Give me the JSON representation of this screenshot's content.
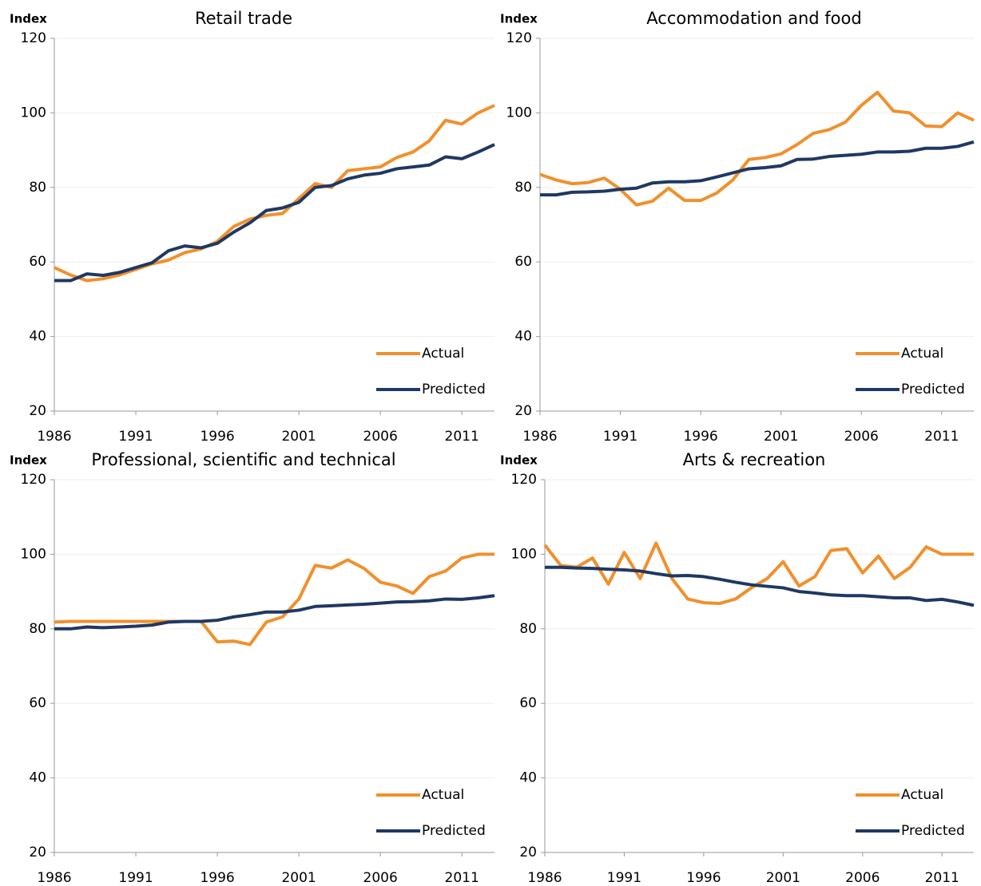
{
  "chart_data": [
    {
      "type": "line",
      "title": "Retail trade",
      "y_label": "Index",
      "x": [
        1986,
        1987,
        1988,
        1989,
        1990,
        1991,
        1992,
        1993,
        1994,
        1995,
        1996,
        1997,
        1998,
        1999,
        2000,
        2001,
        2002,
        2003,
        2004,
        2005,
        2006,
        2007,
        2008,
        2009,
        2010,
        2011,
        2012,
        2013
      ],
      "xlim": [
        1986,
        2013
      ],
      "xticks": [
        1986,
        1991,
        1996,
        2001,
        2006,
        2011
      ],
      "ylim": [
        20,
        120
      ],
      "yticks": [
        20,
        40,
        60,
        80,
        100,
        120
      ],
      "grid": true,
      "series": [
        {
          "name": "Actual",
          "color": "#f0902c",
          "values": [
            58.5,
            56.5,
            55,
            55.5,
            56.5,
            58,
            59.5,
            60.5,
            62.5,
            63.5,
            65.5,
            69.5,
            71.5,
            72.5,
            73,
            77,
            81,
            80,
            84.5,
            85,
            85.5,
            88,
            89.5,
            92.5,
            98,
            97,
            100,
            102
          ]
        },
        {
          "name": "Predicted",
          "color": "#1f3864",
          "values": [
            55,
            55,
            56.8,
            56.4,
            57.2,
            58.5,
            59.8,
            63,
            64.3,
            63.8,
            65,
            68,
            70.5,
            73.8,
            74.5,
            76,
            80,
            80.5,
            82.3,
            83.3,
            83.8,
            85,
            85.5,
            86,
            88.2,
            87.7,
            89.5,
            91.5
          ]
        }
      ]
    },
    {
      "type": "line",
      "title": "Accommodation and food",
      "y_label": "Index",
      "x": [
        1986,
        1987,
        1988,
        1989,
        1990,
        1991,
        1992,
        1993,
        1994,
        1995,
        1996,
        1997,
        1998,
        1999,
        2000,
        2001,
        2002,
        2003,
        2004,
        2005,
        2006,
        2007,
        2008,
        2009,
        2010,
        2011,
        2012,
        2013
      ],
      "xlim": [
        1986,
        2013
      ],
      "xticks": [
        1986,
        1991,
        1996,
        2001,
        2006,
        2011
      ],
      "ylim": [
        20,
        120
      ],
      "yticks": [
        20,
        40,
        60,
        80,
        100,
        120
      ],
      "grid": true,
      "series": [
        {
          "name": "Actual",
          "color": "#f0902c",
          "values": [
            83.5,
            82,
            81,
            81.3,
            82.5,
            79.5,
            75.3,
            76.3,
            79.8,
            76.5,
            76.5,
            78.5,
            82,
            87.5,
            88,
            89,
            91.5,
            94.5,
            95.5,
            97.5,
            102,
            105.5,
            100.5,
            100,
            96.5,
            96.3,
            100,
            98
          ]
        },
        {
          "name": "Predicted",
          "color": "#1f3864",
          "values": [
            78,
            78,
            78.7,
            78.8,
            79,
            79.5,
            79.8,
            81.2,
            81.5,
            81.5,
            81.8,
            82.8,
            83.9,
            85,
            85.3,
            85.8,
            87.5,
            87.6,
            88.3,
            88.6,
            88.9,
            89.5,
            89.5,
            89.7,
            90.5,
            90.5,
            91,
            92.2
          ]
        }
      ]
    },
    {
      "type": "line",
      "title": "Professional, scientific and technical",
      "y_label": "Index",
      "x": [
        1986,
        1987,
        1988,
        1989,
        1990,
        1991,
        1992,
        1993,
        1994,
        1995,
        1996,
        1997,
        1998,
        1999,
        2000,
        2001,
        2002,
        2003,
        2004,
        2005,
        2006,
        2007,
        2008,
        2009,
        2010,
        2011,
        2012,
        2013
      ],
      "xlim": [
        1986,
        2013
      ],
      "xticks": [
        1986,
        1991,
        1996,
        2001,
        2006,
        2011
      ],
      "ylim": [
        20,
        120
      ],
      "yticks": [
        20,
        40,
        60,
        80,
        100,
        120
      ],
      "grid": true,
      "series": [
        {
          "name": "Actual",
          "color": "#f0902c",
          "values": [
            81.8,
            82,
            82,
            82,
            82,
            82,
            82,
            82,
            82,
            82,
            76.5,
            76.7,
            75.8,
            81.8,
            83.2,
            88,
            97,
            96.3,
            98.5,
            96.2,
            92.5,
            91.5,
            89.5,
            94,
            95.5,
            99,
            100,
            100
          ]
        },
        {
          "name": "Predicted",
          "color": "#1f3864",
          "values": [
            80,
            80,
            80.5,
            80.3,
            80.5,
            80.7,
            81,
            81.8,
            82,
            82,
            82.3,
            83.2,
            83.8,
            84.5,
            84.5,
            85,
            86,
            86.2,
            86.4,
            86.6,
            86.9,
            87.2,
            87.3,
            87.5,
            88,
            87.9,
            88.3,
            88.9
          ]
        }
      ]
    },
    {
      "type": "line",
      "title": "Arts & recreation",
      "y_label": "Index",
      "x": [
        1986,
        1987,
        1988,
        1989,
        1990,
        1991,
        1992,
        1993,
        1994,
        1995,
        1996,
        1997,
        1998,
        1999,
        2000,
        2001,
        2002,
        2003,
        2004,
        2005,
        2006,
        2007,
        2008,
        2009,
        2010,
        2011,
        2012,
        2013
      ],
      "xlim": [
        1986,
        2013
      ],
      "xticks": [
        1986,
        1991,
        1996,
        2001,
        2006,
        2011
      ],
      "ylim": [
        20,
        120
      ],
      "yticks": [
        20,
        40,
        60,
        80,
        100,
        120
      ],
      "grid": true,
      "series": [
        {
          "name": "Actual",
          "color": "#f0902c",
          "values": [
            102.5,
            97,
            96.5,
            99,
            92,
            100.5,
            93.5,
            103,
            93.5,
            88,
            87,
            86.8,
            88,
            91,
            93.5,
            98,
            91.5,
            94,
            101,
            101.5,
            95,
            99.5,
            93.5,
            96.5,
            102,
            100,
            100,
            100
          ]
        },
        {
          "name": "Predicted",
          "color": "#1f3864",
          "values": [
            96.5,
            96.5,
            96.3,
            96.2,
            96,
            95.8,
            95.5,
            94.8,
            94.2,
            94.3,
            94,
            93.3,
            92.5,
            91.8,
            91.4,
            91,
            90,
            89.6,
            89.1,
            88.9,
            88.9,
            88.6,
            88.3,
            88.3,
            87.6,
            87.9,
            87.2,
            86.3
          ]
        }
      ]
    }
  ]
}
